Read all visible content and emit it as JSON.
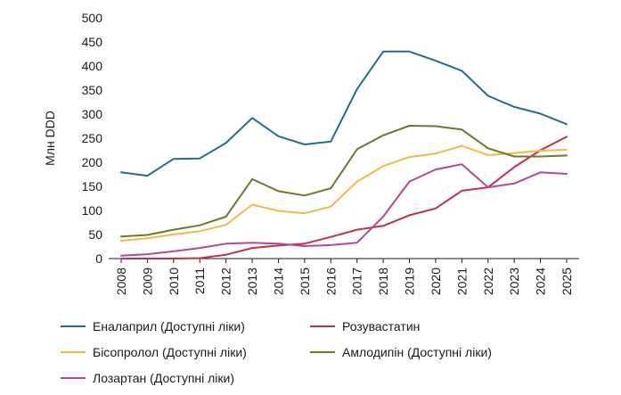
{
  "chart_data": {
    "type": "line",
    "title": "",
    "xlabel": "",
    "ylabel": "Млн DDD",
    "ylim": [
      0,
      500
    ],
    "yticks": [
      0,
      50,
      100,
      150,
      200,
      250,
      300,
      350,
      400,
      450,
      500
    ],
    "categories": [
      "2008",
      "2009",
      "2010",
      "2011",
      "2012",
      "2013",
      "2014",
      "2015",
      "2016",
      "2017",
      "2018",
      "2019",
      "2020",
      "2021",
      "2022",
      "2023",
      "2024",
      "2025"
    ],
    "grid": false,
    "legend_position": "bottom",
    "series": [
      {
        "name": "Еналаприл (Доступні ліки)",
        "color": "#1f6f8b",
        "values": [
          179,
          172,
          207,
          208,
          240,
          292,
          254,
          237,
          243,
          352,
          430,
          430,
          411,
          390,
          338,
          315,
          301,
          279
        ]
      },
      {
        "name": "Розувастатин",
        "color": "#c0314b",
        "values": [
          0,
          0,
          0,
          1,
          8,
          22,
          27,
          31,
          45,
          60,
          68,
          90,
          104,
          141,
          148,
          190,
          225,
          253
        ]
      },
      {
        "name": "Бісопролол (Доступні ліки)",
        "color": "#f2b84a",
        "values": [
          37,
          42,
          50,
          57,
          70,
          112,
          99,
          94,
          108,
          160,
          192,
          211,
          218,
          234,
          215,
          219,
          224,
          226
        ]
      },
      {
        "name": "Амлодипін (Доступні ліки)",
        "color": "#6b7a2a",
        "values": [
          46,
          49,
          60,
          69,
          87,
          165,
          140,
          131,
          146,
          227,
          256,
          276,
          275,
          268,
          229,
          212,
          212,
          214
        ]
      },
      {
        "name": "Лозартан (Доступні ліки)",
        "color": "#b5488e",
        "values": [
          6,
          9,
          15,
          22,
          31,
          33,
          31,
          26,
          28,
          33,
          87,
          160,
          185,
          196,
          148,
          156,
          179,
          176
        ]
      }
    ]
  }
}
